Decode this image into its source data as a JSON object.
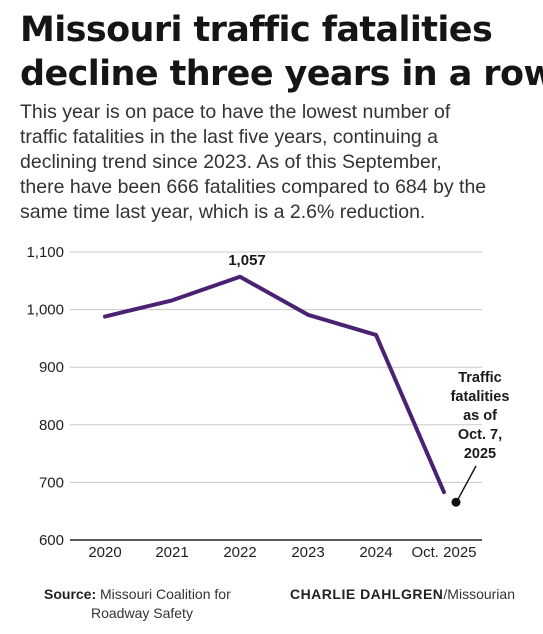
{
  "title_lines": [
    "Missouri traffic fatalities",
    "decline three years in a row"
  ],
  "subtitle_lines": [
    "This year is on pace to have the lowest number of",
    "traffic fatalities in the last five years, continuing a",
    "declining trend since 2023. As of this September,",
    "there have been 666 fatalities compared to 684 by the",
    "same time last year, which is a 2.6% reduction."
  ],
  "chart_data": {
    "type": "line",
    "categories": [
      "2020",
      "2021",
      "2022",
      "2023",
      "2024",
      "Oct. 2025"
    ],
    "values": [
      988,
      1016,
      1057,
      991,
      956,
      683
    ],
    "ylim": [
      600,
      1100
    ],
    "yticks": [
      600,
      700,
      800,
      900,
      1000,
      1100
    ],
    "ytick_labels": [
      "600",
      "700",
      "800",
      "900",
      "1,000",
      "1,100"
    ],
    "grid": true,
    "line_color": "#4b2273",
    "labels": {
      "peak": "1,057"
    },
    "annotation_lines": [
      "Traffic",
      "fatalities",
      "as of",
      "Oct. 7,",
      "2025"
    ]
  },
  "source": {
    "label": "Source:",
    "line1": "Missouri Coalition for",
    "line2": "Roadway Safety"
  },
  "credit": {
    "name": "CHARLIE DAHLGREN",
    "org": "/Missourian"
  }
}
